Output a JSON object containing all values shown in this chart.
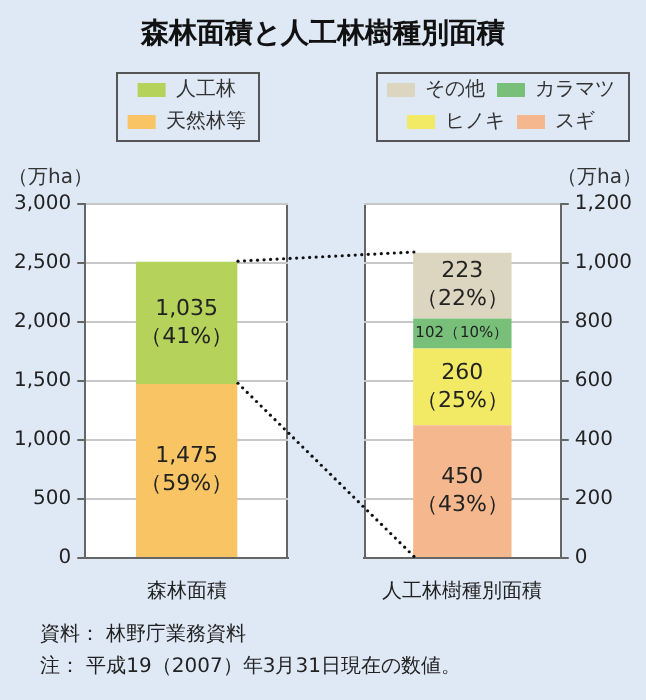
{
  "chart_data": [
    {
      "type": "bar",
      "title": "森林面積と人工林樹種別面積",
      "ylabel": "（万ha）",
      "categories": [
        "森林面積"
      ],
      "stacked": true,
      "legend": "top",
      "grid": "y",
      "ylim": [
        0,
        3000
      ],
      "yticks": [
        0,
        500,
        {
          "value": 1000,
          "label": "1,000"
        },
        {
          "value": 1500,
          "label": "1,500"
        },
        {
          "value": 2000,
          "label": "2,000"
        },
        {
          "value": 2500,
          "label": "2,500"
        },
        {
          "value": 3000,
          "label": "3,000"
        }
      ],
      "series": [
        {
          "name": "天然林等",
          "color": "#f9c464",
          "values": [
            1475
          ],
          "value_labels": [
            "1,475\n（59%）"
          ]
        },
        {
          "name": "人工林",
          "color": "#b5d35a",
          "values": [
            1035
          ],
          "value_labels": [
            "1,035\n（41%）"
          ]
        }
      ],
      "annotations": [
        "資料： 林野庁業務資料",
        "注： 平成19（2007）年3月31日現在の数値。"
      ]
    },
    {
      "type": "bar",
      "y2label": "（万ha）",
      "categories": [
        "人工林樹種別面積"
      ],
      "stacked": true,
      "legend": "top",
      "grid": "y",
      "y2lim": [
        0,
        1200
      ],
      "y2ticks": [
        0,
        200,
        400,
        600,
        800,
        {
          "value": 1000,
          "label": "1,000"
        },
        {
          "value": 1200,
          "label": "1,200"
        }
      ],
      "series": [
        {
          "name": "スギ",
          "color": "#f5b88e",
          "axis": "y2",
          "values": [
            450
          ],
          "value_labels": [
            "450\n（43%）"
          ]
        },
        {
          "name": "ヒノキ",
          "color": "#f2ea64",
          "axis": "y2",
          "values": [
            260
          ],
          "value_labels": [
            "260\n（25%）"
          ]
        },
        {
          "name": "カラマツ",
          "color": "#78c07a",
          "axis": "y2",
          "values": [
            102
          ],
          "value_labels": [
            "102（10%）"
          ]
        },
        {
          "name": "その他",
          "color": "#dcd5c0",
          "axis": "y2",
          "values": [
            223
          ],
          "value_labels": [
            "223\n（22%）"
          ]
        }
      ]
    }
  ]
}
